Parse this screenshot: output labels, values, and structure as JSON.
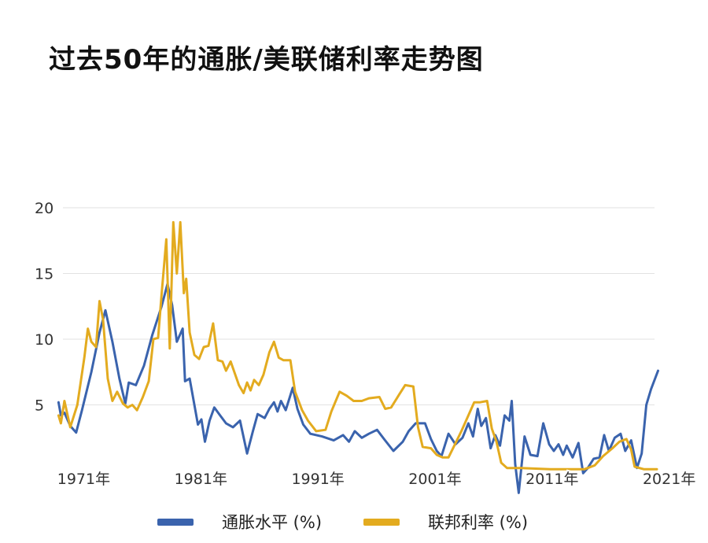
{
  "title": "过去50年的通胀/美联储利率走势图",
  "chart_data": {
    "type": "line",
    "title": "过去50年的通胀/美联储利率走势图",
    "xlabel": "",
    "ylabel": "",
    "x_ticks": [
      "1971年",
      "1981年",
      "1991年",
      "2001年",
      "2011年",
      "2021年"
    ],
    "y_ticks": [
      5,
      10,
      15,
      20
    ],
    "xlim": [
      1970.5,
      2022.3
    ],
    "ylim": [
      0,
      20
    ],
    "grid": true,
    "legend_position": "bottom",
    "series": [
      {
        "name": "通胀水平 (%)",
        "color": "#3a63ad",
        "points": [
          [
            1971.0,
            5.2
          ],
          [
            1971.2,
            4.2
          ],
          [
            1971.5,
            4.4
          ],
          [
            1972.0,
            3.4
          ],
          [
            1972.5,
            2.9
          ],
          [
            1973.0,
            4.6
          ],
          [
            1973.8,
            7.5
          ],
          [
            1974.5,
            10.5
          ],
          [
            1975.0,
            12.2
          ],
          [
            1975.6,
            9.8
          ],
          [
            1976.2,
            7.0
          ],
          [
            1976.7,
            5.1
          ],
          [
            1977.0,
            6.7
          ],
          [
            1977.6,
            6.5
          ],
          [
            1978.3,
            8.0
          ],
          [
            1979.0,
            10.3
          ],
          [
            1979.8,
            12.5
          ],
          [
            1980.3,
            14.2
          ],
          [
            1980.7,
            12.6
          ],
          [
            1981.1,
            9.8
          ],
          [
            1981.6,
            10.8
          ],
          [
            1981.8,
            6.8
          ],
          [
            1982.2,
            7.0
          ],
          [
            1982.6,
            5.0
          ],
          [
            1982.9,
            3.5
          ],
          [
            1983.2,
            3.9
          ],
          [
            1983.5,
            2.2
          ],
          [
            1983.9,
            3.8
          ],
          [
            1984.3,
            4.8
          ],
          [
            1984.8,
            4.2
          ],
          [
            1985.3,
            3.6
          ],
          [
            1985.9,
            3.3
          ],
          [
            1986.5,
            3.8
          ],
          [
            1987.1,
            1.3
          ],
          [
            1987.6,
            3.0
          ],
          [
            1988.0,
            4.3
          ],
          [
            1988.6,
            4.0
          ],
          [
            1989.0,
            4.7
          ],
          [
            1989.4,
            5.2
          ],
          [
            1989.7,
            4.5
          ],
          [
            1990.0,
            5.3
          ],
          [
            1990.4,
            4.6
          ],
          [
            1991.0,
            6.3
          ],
          [
            1991.4,
            4.7
          ],
          [
            1991.9,
            3.5
          ],
          [
            1992.5,
            2.8
          ],
          [
            1993.5,
            2.6
          ],
          [
            1994.5,
            2.3
          ],
          [
            1995.3,
            2.7
          ],
          [
            1995.8,
            2.2
          ],
          [
            1996.3,
            3.0
          ],
          [
            1996.9,
            2.5
          ],
          [
            1997.5,
            2.8
          ],
          [
            1998.2,
            3.1
          ],
          [
            1998.8,
            2.4
          ],
          [
            1999.6,
            1.5
          ],
          [
            2000.4,
            2.2
          ],
          [
            2000.9,
            3.0
          ],
          [
            2001.5,
            3.6
          ],
          [
            2002.3,
            3.6
          ],
          [
            2002.8,
            2.4
          ],
          [
            2003.3,
            1.5
          ],
          [
            2003.7,
            1.1
          ],
          [
            2004.3,
            2.8
          ],
          [
            2004.9,
            2.0
          ],
          [
            2005.5,
            2.5
          ],
          [
            2006.0,
            3.6
          ],
          [
            2006.4,
            2.6
          ],
          [
            2006.8,
            4.7
          ],
          [
            2007.1,
            3.4
          ],
          [
            2007.5,
            4.0
          ],
          [
            2007.9,
            1.7
          ],
          [
            2008.3,
            2.7
          ],
          [
            2008.7,
            1.9
          ],
          [
            2009.1,
            4.2
          ],
          [
            2009.5,
            3.8
          ],
          [
            2009.7,
            5.3
          ],
          [
            2010.0,
            0.5
          ],
          [
            2010.3,
            -1.7
          ],
          [
            2010.8,
            2.6
          ],
          [
            2011.3,
            1.2
          ],
          [
            2011.9,
            1.1
          ],
          [
            2012.4,
            3.6
          ],
          [
            2012.9,
            2.0
          ],
          [
            2013.3,
            1.5
          ],
          [
            2013.7,
            2.0
          ],
          [
            2014.1,
            1.2
          ],
          [
            2014.4,
            1.9
          ],
          [
            2014.9,
            1.0
          ],
          [
            2015.4,
            2.1
          ],
          [
            2015.8,
            -0.2
          ],
          [
            2016.2,
            0.2
          ],
          [
            2016.7,
            0.9
          ],
          [
            2017.2,
            1.0
          ],
          [
            2017.6,
            2.7
          ],
          [
            2018.0,
            1.5
          ],
          [
            2018.5,
            2.5
          ],
          [
            2019.0,
            2.8
          ],
          [
            2019.4,
            1.5
          ],
          [
            2019.9,
            2.3
          ],
          [
            2020.4,
            0.2
          ],
          [
            2020.8,
            1.3
          ],
          [
            2021.2,
            5.0
          ],
          [
            2021.6,
            6.2
          ],
          [
            2022.2,
            7.6
          ]
        ]
      },
      {
        "name": "联邦利率 (%)",
        "color": "#e3ab1f",
        "points": [
          [
            1971.0,
            4.2
          ],
          [
            1971.2,
            3.6
          ],
          [
            1971.5,
            5.3
          ],
          [
            1972.0,
            3.3
          ],
          [
            1972.6,
            5.0
          ],
          [
            1973.2,
            8.6
          ],
          [
            1973.5,
            10.8
          ],
          [
            1973.8,
            9.8
          ],
          [
            1974.2,
            9.4
          ],
          [
            1974.5,
            12.9
          ],
          [
            1974.8,
            11.5
          ],
          [
            1975.2,
            7.0
          ],
          [
            1975.6,
            5.3
          ],
          [
            1976.0,
            6.0
          ],
          [
            1976.5,
            5.1
          ],
          [
            1976.9,
            4.8
          ],
          [
            1977.3,
            5.0
          ],
          [
            1977.7,
            4.6
          ],
          [
            1978.2,
            5.6
          ],
          [
            1978.7,
            6.8
          ],
          [
            1979.1,
            10.0
          ],
          [
            1979.5,
            10.1
          ],
          [
            1979.8,
            13.4
          ],
          [
            1980.2,
            17.6
          ],
          [
            1980.5,
            9.3
          ],
          [
            1980.8,
            18.9
          ],
          [
            1981.1,
            15.0
          ],
          [
            1981.4,
            18.9
          ],
          [
            1981.7,
            13.5
          ],
          [
            1981.9,
            14.6
          ],
          [
            1982.2,
            10.5
          ],
          [
            1982.6,
            8.8
          ],
          [
            1983.0,
            8.5
          ],
          [
            1983.4,
            9.4
          ],
          [
            1983.8,
            9.5
          ],
          [
            1984.2,
            11.2
          ],
          [
            1984.6,
            8.4
          ],
          [
            1985.0,
            8.3
          ],
          [
            1985.3,
            7.6
          ],
          [
            1985.7,
            8.3
          ],
          [
            1986.4,
            6.5
          ],
          [
            1986.8,
            5.9
          ],
          [
            1987.1,
            6.7
          ],
          [
            1987.4,
            6.1
          ],
          [
            1987.7,
            6.9
          ],
          [
            1988.1,
            6.5
          ],
          [
            1988.5,
            7.3
          ],
          [
            1989.0,
            9.0
          ],
          [
            1989.4,
            9.8
          ],
          [
            1989.8,
            8.6
          ],
          [
            1990.2,
            8.4
          ],
          [
            1990.8,
            8.4
          ],
          [
            1991.2,
            6.0
          ],
          [
            1991.8,
            4.6
          ],
          [
            1992.3,
            3.8
          ],
          [
            1993.0,
            3.0
          ],
          [
            1993.8,
            3.1
          ],
          [
            1994.3,
            4.5
          ],
          [
            1995.0,
            6.0
          ],
          [
            1995.6,
            5.7
          ],
          [
            1996.2,
            5.3
          ],
          [
            1996.9,
            5.3
          ],
          [
            1997.5,
            5.5
          ],
          [
            1998.4,
            5.6
          ],
          [
            1998.9,
            4.7
          ],
          [
            1999.4,
            4.8
          ],
          [
            2000.1,
            5.8
          ],
          [
            2000.6,
            6.5
          ],
          [
            2001.3,
            6.4
          ],
          [
            2001.7,
            3.3
          ],
          [
            2002.1,
            1.8
          ],
          [
            2002.8,
            1.7
          ],
          [
            2003.3,
            1.2
          ],
          [
            2003.8,
            1.0
          ],
          [
            2004.3,
            1.0
          ],
          [
            2004.8,
            1.9
          ],
          [
            2005.4,
            3.0
          ],
          [
            2006.0,
            4.2
          ],
          [
            2006.5,
            5.2
          ],
          [
            2007.0,
            5.2
          ],
          [
            2007.6,
            5.3
          ],
          [
            2008.0,
            3.2
          ],
          [
            2008.4,
            2.2
          ],
          [
            2008.8,
            0.6
          ],
          [
            2009.3,
            0.2
          ],
          [
            2010.5,
            0.2
          ],
          [
            2013.0,
            0.1
          ],
          [
            2015.9,
            0.1
          ],
          [
            2016.8,
            0.4
          ],
          [
            2017.5,
            1.1
          ],
          [
            2018.3,
            1.7
          ],
          [
            2018.9,
            2.2
          ],
          [
            2019.5,
            2.4
          ],
          [
            2019.9,
            1.6
          ],
          [
            2020.2,
            0.3
          ],
          [
            2021.0,
            0.1
          ],
          [
            2022.1,
            0.1
          ]
        ]
      }
    ]
  },
  "legend": [
    {
      "label": "通胀水平 (%)",
      "color": "#3a63ad"
    },
    {
      "label": "联邦利率 (%)",
      "color": "#e3ab1f"
    }
  ]
}
